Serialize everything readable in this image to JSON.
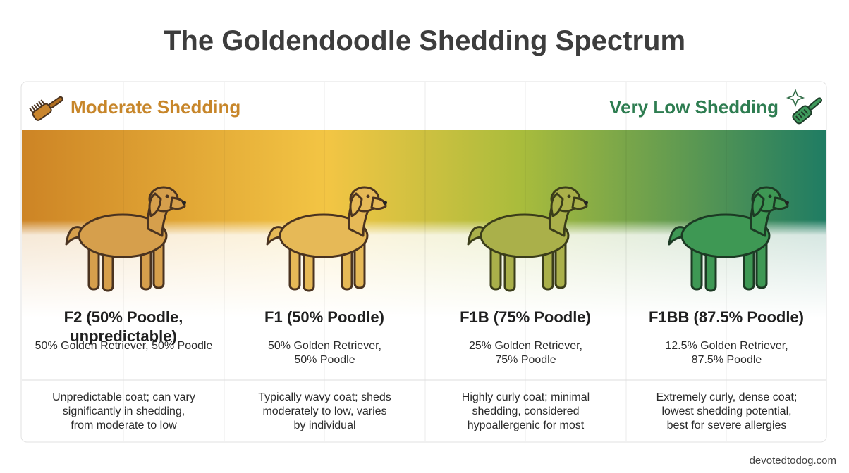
{
  "title": "The Goldendoodle Shedding Spectrum",
  "scale": {
    "left_label": "Moderate Shedding",
    "right_label": "Very Low Shedding"
  },
  "columns": [
    {
      "name": "F2 (50% Poodle, unpredictable)",
      "breakdown": [
        "50% Golden Retriever, 50% Poodle"
      ],
      "description": [
        "Unpredictable coat; can vary",
        "significantly in shedding,",
        "from moderate to low"
      ]
    },
    {
      "name": "F1 (50% Poodle)",
      "breakdown": [
        "50% Golden Retriever,",
        "50% Poodle"
      ],
      "description": [
        "Typically wavy coat; sheds",
        "moderately to low, varies",
        "by individual"
      ]
    },
    {
      "name": "F1B (75% Poodle)",
      "breakdown": [
        "25% Golden Retriever,",
        "75% Poodle"
      ],
      "description": [
        "Highly curly coat; minimal",
        "shedding, considered",
        "hypoallergenic for most"
      ]
    },
    {
      "name": "F1BB (87.5% Poodle)",
      "breakdown": [
        "12.5% Golden Retriever,",
        "87.5% Poodle"
      ],
      "description": [
        "Extremely curly, dense coat;",
        "lowest shedding potential,",
        "best for severe allergies"
      ]
    }
  ],
  "footer": "devotedtodog.com"
}
